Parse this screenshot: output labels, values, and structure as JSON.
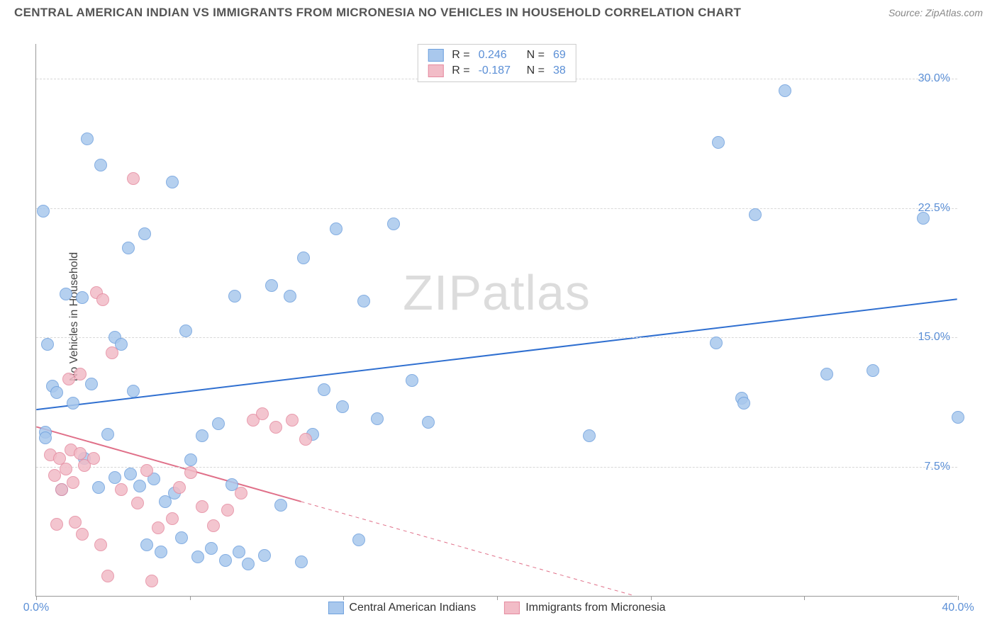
{
  "title": "CENTRAL AMERICAN INDIAN VS IMMIGRANTS FROM MICRONESIA NO VEHICLES IN HOUSEHOLD CORRELATION CHART",
  "source": "Source: ZipAtlas.com",
  "ylabel": "No Vehicles in Household",
  "watermark_a": "ZIP",
  "watermark_b": "atlas",
  "chart": {
    "type": "scatter",
    "xlim": [
      0,
      40
    ],
    "ylim": [
      0,
      32
    ],
    "yticks": [
      7.5,
      15.0,
      22.5,
      30.0
    ],
    "ytick_labels": [
      "7.5%",
      "15.0%",
      "22.5%",
      "30.0%"
    ],
    "xticks": [
      0,
      13.33,
      26.67,
      40
    ],
    "xtick_labels": [
      "0.0%",
      "",
      "",
      "40.0%"
    ],
    "xtick_minor": [
      6.67,
      20,
      33.33
    ],
    "grid_color": "#d8d8d8",
    "background_color": "#ffffff",
    "axis_color": "#999999",
    "label_fontsize": 16,
    "point_radius": 9,
    "point_border_width": 1,
    "point_fill_opacity": 0.35
  },
  "series": [
    {
      "id": "cai",
      "label": "Central American Indians",
      "color_fill": "#a9c8ed",
      "color_stroke": "#6fa1de",
      "legend_swatch_fill": "#a9c8ed",
      "legend_swatch_stroke": "#6fa1de",
      "R": "0.246",
      "N": "69",
      "trend": {
        "x1": 0,
        "y1": 10.8,
        "x2": 40,
        "y2": 17.2,
        "solid_to_x": 40,
        "color": "#2f6fd0",
        "width": 2
      },
      "points": [
        [
          0.3,
          22.3
        ],
        [
          2.2,
          26.5
        ],
        [
          2.8,
          25.0
        ],
        [
          0.5,
          14.6
        ],
        [
          1.3,
          17.5
        ],
        [
          2.0,
          17.3
        ],
        [
          0.7,
          12.2
        ],
        [
          3.4,
          15.0
        ],
        [
          3.7,
          14.6
        ],
        [
          0.4,
          9.5
        ],
        [
          0.9,
          11.8
        ],
        [
          1.6,
          11.2
        ],
        [
          2.4,
          12.3
        ],
        [
          4.0,
          20.2
        ],
        [
          4.7,
          21.0
        ],
        [
          3.1,
          9.4
        ],
        [
          2.7,
          6.3
        ],
        [
          3.4,
          6.9
        ],
        [
          4.1,
          7.1
        ],
        [
          4.5,
          6.4
        ],
        [
          5.1,
          6.8
        ],
        [
          5.6,
          5.5
        ],
        [
          6.0,
          6.0
        ],
        [
          4.8,
          3.0
        ],
        [
          5.4,
          2.6
        ],
        [
          6.3,
          3.4
        ],
        [
          7.0,
          2.3
        ],
        [
          7.6,
          2.8
        ],
        [
          8.2,
          2.1
        ],
        [
          8.8,
          2.6
        ],
        [
          6.7,
          7.9
        ],
        [
          7.2,
          9.3
        ],
        [
          7.9,
          10.0
        ],
        [
          8.5,
          6.5
        ],
        [
          9.2,
          1.9
        ],
        [
          9.9,
          2.4
        ],
        [
          10.6,
          5.3
        ],
        [
          11.5,
          2.0
        ],
        [
          10.2,
          18.0
        ],
        [
          11.0,
          17.4
        ],
        [
          11.6,
          19.6
        ],
        [
          12.0,
          9.4
        ],
        [
          12.5,
          12.0
        ],
        [
          13.3,
          11.0
        ],
        [
          13.0,
          21.3
        ],
        [
          14.2,
          17.1
        ],
        [
          14.8,
          10.3
        ],
        [
          15.5,
          21.6
        ],
        [
          16.3,
          12.5
        ],
        [
          17.0,
          10.1
        ],
        [
          24.0,
          9.3
        ],
        [
          14.0,
          3.3
        ],
        [
          29.5,
          14.7
        ],
        [
          30.6,
          11.5
        ],
        [
          30.7,
          11.2
        ],
        [
          31.2,
          22.1
        ],
        [
          32.5,
          29.3
        ],
        [
          29.6,
          26.3
        ],
        [
          34.3,
          12.9
        ],
        [
          36.3,
          13.1
        ],
        [
          38.5,
          21.9
        ],
        [
          40.0,
          10.4
        ],
        [
          5.9,
          24.0
        ],
        [
          6.5,
          15.4
        ],
        [
          0.4,
          9.2
        ],
        [
          2.1,
          8.0
        ],
        [
          8.6,
          17.4
        ],
        [
          4.2,
          11.9
        ],
        [
          1.1,
          6.2
        ]
      ]
    },
    {
      "id": "mic",
      "label": "Immigrants from Micronesia",
      "color_fill": "#f2bcc7",
      "color_stroke": "#e58ba0",
      "legend_swatch_fill": "#f2bcc7",
      "legend_swatch_stroke": "#e58ba0",
      "R": "-0.187",
      "N": "38",
      "trend": {
        "x1": 0,
        "y1": 9.8,
        "x2": 26,
        "y2": 0.0,
        "solid_to_x": 11.5,
        "color": "#e07089",
        "width": 2
      },
      "points": [
        [
          0.6,
          8.2
        ],
        [
          1.0,
          8.0
        ],
        [
          1.5,
          8.5
        ],
        [
          0.8,
          7.0
        ],
        [
          1.3,
          7.4
        ],
        [
          1.9,
          8.3
        ],
        [
          1.1,
          6.2
        ],
        [
          1.6,
          6.6
        ],
        [
          2.1,
          7.6
        ],
        [
          2.5,
          8.0
        ],
        [
          0.9,
          4.2
        ],
        [
          1.7,
          4.3
        ],
        [
          2.0,
          3.6
        ],
        [
          2.8,
          3.0
        ],
        [
          1.4,
          12.6
        ],
        [
          1.9,
          12.9
        ],
        [
          2.6,
          17.6
        ],
        [
          2.9,
          17.2
        ],
        [
          3.3,
          14.1
        ],
        [
          4.2,
          24.2
        ],
        [
          3.7,
          6.2
        ],
        [
          4.4,
          5.4
        ],
        [
          4.8,
          7.3
        ],
        [
          5.3,
          4.0
        ],
        [
          5.9,
          4.5
        ],
        [
          6.2,
          6.3
        ],
        [
          6.7,
          7.2
        ],
        [
          7.2,
          5.2
        ],
        [
          7.7,
          4.1
        ],
        [
          8.3,
          5.0
        ],
        [
          8.9,
          6.0
        ],
        [
          9.4,
          10.2
        ],
        [
          9.8,
          10.6
        ],
        [
          10.4,
          9.8
        ],
        [
          11.1,
          10.2
        ],
        [
          11.7,
          9.1
        ],
        [
          3.1,
          1.2
        ],
        [
          5.0,
          0.9
        ]
      ]
    }
  ],
  "legend_top_labels": {
    "R_prefix": "R =",
    "N_prefix": "N ="
  }
}
